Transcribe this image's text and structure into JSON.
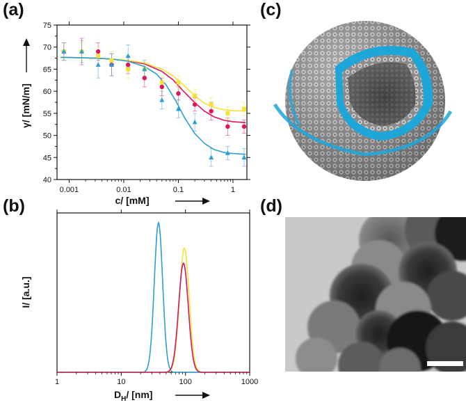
{
  "panels": {
    "a": "(a)",
    "b": "(b)",
    "c": "(c)",
    "d": "(d)"
  },
  "chart_data": [
    {
      "type": "scatter",
      "panel": "a",
      "xscale": "log",
      "xlim": [
        0.0006,
        1.8
      ],
      "ylim": [
        40,
        75
      ],
      "x_ticks": [
        "0.001",
        "0.01",
        "0.1",
        "1"
      ],
      "x_tick_values": [
        0.001,
        0.01,
        0.1,
        1
      ],
      "y_ticks": [
        "40",
        "45",
        "50",
        "55",
        "60",
        "65",
        "70",
        "75"
      ],
      "y_tick_values": [
        40,
        45,
        50,
        55,
        60,
        65,
        70,
        75
      ],
      "xlabel": "c/ [mM]",
      "ylabel": "γ/ [mN/m]",
      "series": [
        {
          "color": "#e0135f",
          "marker": "circle",
          "x": [
            0.0008,
            0.0017,
            0.0034,
            0.006,
            0.012,
            0.024,
            0.05,
            0.1,
            0.2,
            0.4,
            0.8,
            1.6
          ],
          "y": [
            69,
            69,
            69,
            66,
            66,
            63,
            61,
            59.5,
            57,
            55.5,
            52,
            52
          ],
          "err": [
            2,
            3,
            2,
            2.5,
            2,
            2,
            2,
            1.5,
            1.5,
            2,
            2,
            1.5
          ],
          "fit_x": [
            0.0007,
            0.0015,
            0.003,
            0.006,
            0.012,
            0.024,
            0.05,
            0.08,
            0.12,
            0.2,
            0.3,
            0.45,
            0.7,
            1.0,
            1.7
          ],
          "fit_y": [
            67.7,
            67.6,
            67.5,
            67.3,
            66.9,
            66.2,
            64.5,
            62.6,
            60.2,
            57.4,
            55.5,
            54.2,
            53.4,
            53.1,
            52.9
          ]
        },
        {
          "color": "#f7e135",
          "marker": "square",
          "x": [
            0.0008,
            0.0017,
            0.0034,
            0.006,
            0.012,
            0.024,
            0.05,
            0.1,
            0.2,
            0.4,
            0.8,
            1.6
          ],
          "y": [
            69,
            69,
            68,
            67,
            65,
            65,
            62,
            62,
            59,
            57,
            55,
            56
          ],
          "err": [
            2,
            2,
            2,
            2,
            2,
            1.5,
            1.5,
            1.5,
            1.5,
            1.5,
            1.5,
            1.5
          ],
          "fit_x": [
            0.0007,
            0.0015,
            0.003,
            0.006,
            0.012,
            0.024,
            0.05,
            0.08,
            0.12,
            0.2,
            0.3,
            0.45,
            0.7,
            1.0,
            1.7
          ],
          "fit_y": [
            67.7,
            67.6,
            67.5,
            67.3,
            67.0,
            66.4,
            65.0,
            63.5,
            61.6,
            59.0,
            57.3,
            56.3,
            55.8,
            55.6,
            55.5
          ]
        },
        {
          "color": "#2a9fd0",
          "marker": "triangle",
          "x": [
            0.0008,
            0.0017,
            0.0034,
            0.006,
            0.012,
            0.024,
            0.05,
            0.1,
            0.2,
            0.4,
            0.8,
            1.6
          ],
          "y": [
            69,
            69,
            66,
            66,
            68,
            65,
            58,
            56,
            53,
            45,
            46,
            45
          ],
          "err": [
            2,
            2.5,
            3,
            2.5,
            2.5,
            2,
            2,
            2,
            2,
            2,
            1.5,
            2
          ],
          "fit_x": [
            0.0007,
            0.0015,
            0.003,
            0.006,
            0.012,
            0.024,
            0.04,
            0.06,
            0.09,
            0.13,
            0.2,
            0.3,
            0.45,
            0.7,
            1.0,
            1.7
          ],
          "fit_y": [
            67.7,
            67.6,
            67.5,
            67.3,
            66.8,
            65.6,
            63.9,
            61.4,
            57.8,
            54.0,
            50.4,
            48.2,
            46.8,
            46.1,
            45.9,
            45.7
          ]
        }
      ]
    },
    {
      "type": "line",
      "panel": "b",
      "xscale": "log",
      "xlim": [
        1,
        1000
      ],
      "ylim": [
        0,
        1
      ],
      "x_ticks": [
        "1",
        "10",
        "100",
        "1000"
      ],
      "x_tick_values": [
        1,
        10,
        100,
        1000
      ],
      "xlabel_main": "D",
      "xlabel_sub": "H",
      "xlabel_rest": "/ [nm]",
      "ylabel": "I/ [a.u.]",
      "series": [
        {
          "color": "#2a9fd0",
          "center": 38,
          "peak": 1.0,
          "width": 0.065
        },
        {
          "color": "#f7e135",
          "center": 96,
          "peak": 0.83,
          "width": 0.075
        },
        {
          "color": "#c8176c",
          "center": 93,
          "peak": 0.73,
          "width": 0.075
        }
      ]
    }
  ]
}
